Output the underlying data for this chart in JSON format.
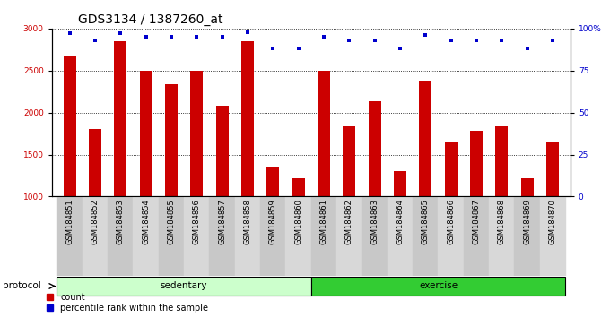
{
  "title": "GDS3134 / 1387260_at",
  "samples": [
    "GSM184851",
    "GSM184852",
    "GSM184853",
    "GSM184854",
    "GSM184855",
    "GSM184856",
    "GSM184857",
    "GSM184858",
    "GSM184859",
    "GSM184860",
    "GSM184861",
    "GSM184862",
    "GSM184863",
    "GSM184864",
    "GSM184865",
    "GSM184866",
    "GSM184867",
    "GSM184868",
    "GSM184869",
    "GSM184870"
  ],
  "counts": [
    2670,
    1800,
    2850,
    2500,
    2340,
    2500,
    2080,
    2850,
    1350,
    1220,
    2500,
    1840,
    2140,
    1300,
    2380,
    1650,
    1780,
    1840,
    1220,
    1650
  ],
  "percentiles": [
    97,
    93,
    97,
    95,
    95,
    95,
    95,
    98,
    88,
    88,
    95,
    93,
    93,
    88,
    96,
    93,
    93,
    93,
    88,
    93
  ],
  "ylim_left": [
    1000,
    3000
  ],
  "ylim_right": [
    0,
    100
  ],
  "yticks_left": [
    1000,
    1500,
    2000,
    2500,
    3000
  ],
  "yticks_right": [
    0,
    25,
    50,
    75,
    100
  ],
  "bar_color": "#cc0000",
  "dot_color": "#0000cc",
  "group1_label": "sedentary",
  "group2_label": "exercise",
  "group1_count": 10,
  "group2_count": 10,
  "group1_bg": "#ccffcc",
  "group2_bg": "#33cc33",
  "xlabels_bg": "#d8d8d8",
  "protocol_label": "protocol",
  "legend_count_label": "count",
  "legend_pct_label": "percentile rank within the sample",
  "title_fontsize": 10,
  "tick_fontsize": 6,
  "label_fontsize": 7.5,
  "legend_fontsize": 7
}
